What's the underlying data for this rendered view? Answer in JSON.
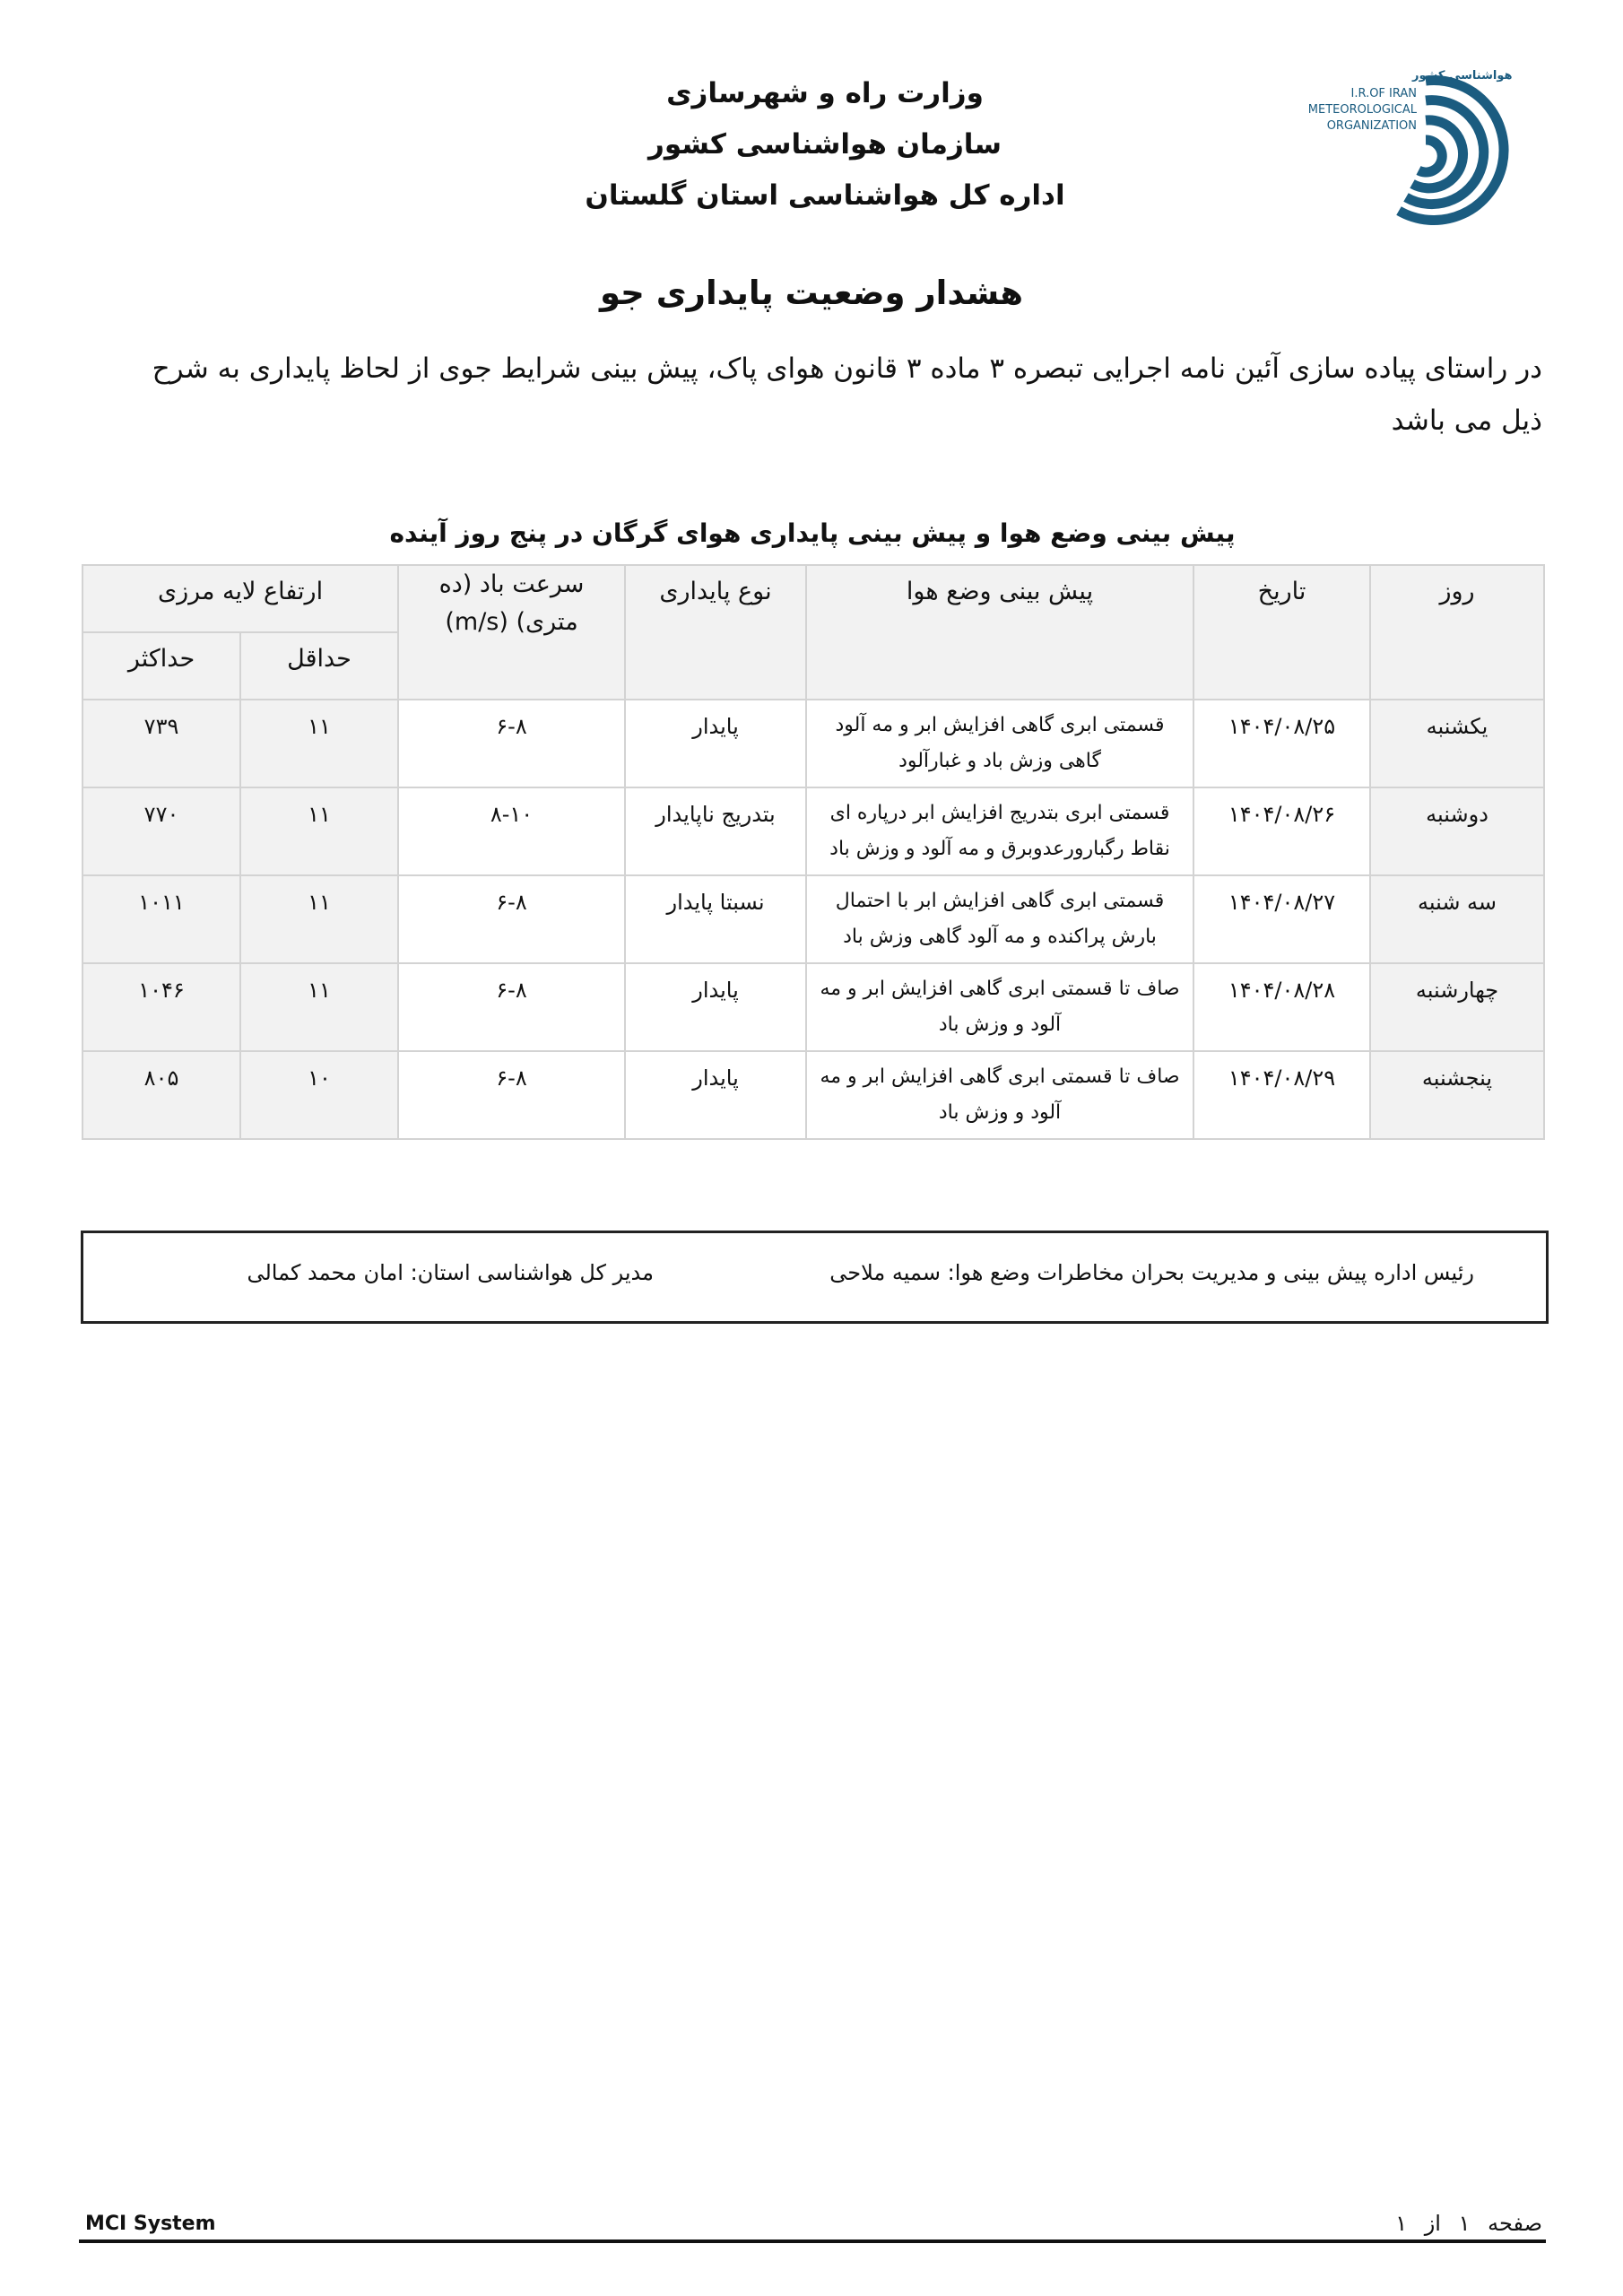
{
  "logo": {
    "text_fa": "سازمان هواشناسی کشور",
    "text_en": [
      "I.R.OF IRAN",
      "METEOROLOGICAL",
      "ORGANIZATION"
    ],
    "color": "#1b5c80"
  },
  "header": {
    "line1": "وزارت راه و شهرسازی",
    "line2": "سازمان هواشناسی کشور",
    "line3": "اداره کل هواشناسی استان گلستان"
  },
  "title": "هشدار وضعیت پایداری جو",
  "intro": "در راستای پیاده سازی آئین نامه اجرایی تبصره ۳ ماده ۳ قانون هوای پاک، پیش بینی شرایط جوی از لحاظ پایداری به شرح ذیل می باشد",
  "table": {
    "caption": "پیش بینی وضع هوا و پیش بینی پایداری هوای گرگان در پنج روز آینده",
    "headers": {
      "day": "روز",
      "date": "تاریخ",
      "forecast": "پیش بینی وضع هوا",
      "stability": "نوع پایداری",
      "wind": "سرعت باد (ده متری) (m/s)",
      "blh": "ارتفاع لایه مرزی",
      "min": "حداقل",
      "max": "حداکثر"
    },
    "rows": [
      {
        "day": "یکشنبه",
        "date": "۱۴۰۴/۰۸/۲۵",
        "forecast": "قسمتی ابری گاهی افزایش ابر و مه آلود گاهی وزش باد و غبارآلود",
        "stability": "پایدار",
        "wind": "۶-۸",
        "min": "۱۱",
        "max": "۷۳۹"
      },
      {
        "day": "دوشنبه",
        "date": "۱۴۰۴/۰۸/۲۶",
        "forecast": "قسمتی ابری بتدریج افزایش ابر درپاره ای نقاط رگبارورعدوبرق و مه آلود و وزش باد",
        "stability": "بتدریج ناپایدار",
        "wind": "۸-۱۰",
        "min": "۱۱",
        "max": "۷۷۰"
      },
      {
        "day": "سه شنبه",
        "date": "۱۴۰۴/۰۸/۲۷",
        "forecast": "قسمتی ابری گاهی افزایش ابر با احتمال بارش پراکنده و مه آلود گاهی وزش باد",
        "stability": "نسبتا پایدار",
        "wind": "۶-۸",
        "min": "۱۱",
        "max": "۱۰۱۱"
      },
      {
        "day": "چهارشنبه",
        "date": "۱۴۰۴/۰۸/۲۸",
        "forecast": "صاف تا قسمتی ابری گاهی افزایش ابر و مه آلود و وزش باد",
        "stability": "پایدار",
        "wind": "۶-۸",
        "min": "۱۱",
        "max": "۱۰۴۶"
      },
      {
        "day": "پنجشنبه",
        "date": "۱۴۰۴/۰۸/۲۹",
        "forecast": "صاف تا قسمتی ابری گاهی افزایش ابر و مه آلود و وزش باد",
        "stability": "پایدار",
        "wind": "۶-۸",
        "min": "۱۰",
        "max": "۸۰۵"
      }
    ]
  },
  "signatures": {
    "forecast_head": "رئیس اداره پیش بینی و مدیریت بحران مخاطرات وضع هوا:  سمیه  ملاحی",
    "director": "مدیر کل هواشناسی استان:  امان محمد کمالی"
  },
  "footer": {
    "system": "MCI System",
    "page": "صفحه ۱ از ۱"
  }
}
